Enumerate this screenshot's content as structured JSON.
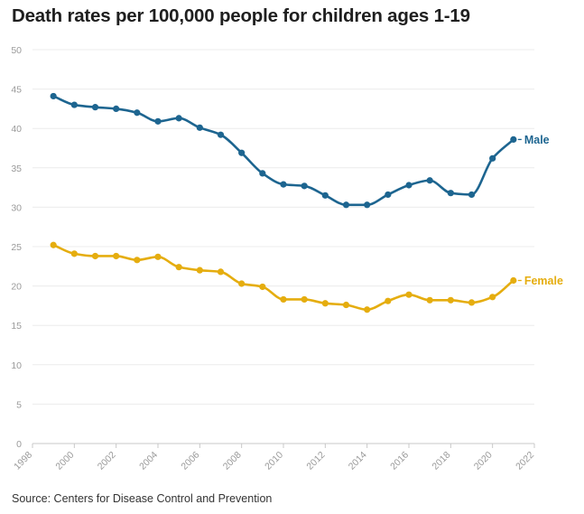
{
  "chart_data": {
    "type": "line",
    "title": "Death rates per 100,000 people for children ages 1-19",
    "source": "Source: Centers for Disease Control and Prevention",
    "xlabel": "",
    "ylabel": "",
    "xlim": [
      1998,
      2022
    ],
    "ylim": [
      0,
      50
    ],
    "x_ticks": [
      "1998",
      "2000",
      "2002",
      "2004",
      "2006",
      "2008",
      "2010",
      "2012",
      "2014",
      "2016",
      "2018",
      "2020",
      "2022"
    ],
    "y_ticks": [
      "0",
      "5",
      "10",
      "15",
      "20",
      "25",
      "30",
      "35",
      "40",
      "45",
      "50"
    ],
    "grid": "horizontal",
    "x": [
      1999,
      2000,
      2001,
      2002,
      2003,
      2004,
      2005,
      2006,
      2007,
      2008,
      2009,
      2010,
      2011,
      2012,
      2013,
      2014,
      2015,
      2016,
      2017,
      2018,
      2019,
      2020,
      2021
    ],
    "series": [
      {
        "name": "Male",
        "label": "Male",
        "color": "#1d6590",
        "values": [
          44.1,
          43.0,
          42.7,
          42.5,
          42.0,
          40.9,
          41.3,
          40.1,
          39.2,
          36.9,
          34.3,
          32.9,
          32.7,
          31.5,
          30.3,
          30.3,
          31.6,
          32.8,
          33.4,
          31.8,
          31.6,
          36.2,
          38.6
        ]
      },
      {
        "name": "Female",
        "label": "Female",
        "color": "#e5ad0f",
        "values": [
          25.2,
          24.1,
          23.8,
          23.8,
          23.3,
          23.7,
          22.4,
          22.0,
          21.8,
          20.3,
          19.9,
          18.3,
          18.3,
          17.8,
          17.6,
          17.0,
          18.1,
          18.9,
          18.2,
          18.2,
          17.9,
          18.6,
          20.7
        ]
      }
    ]
  }
}
